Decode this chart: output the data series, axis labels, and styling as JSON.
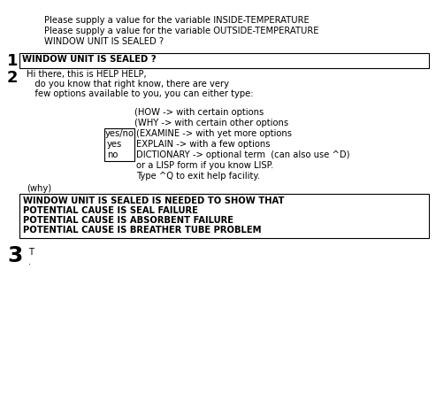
{
  "bg_color": "#ffffff",
  "fig_width": 4.93,
  "fig_height": 4.61,
  "header_lines": [
    "Please supply a value for the variable INSIDE-TEMPERATURE",
    "Please supply a value for the variable OUTSIDE-TEMPERATURE",
    "WINDOW UNIT IS SEALED ?"
  ],
  "label1": "1",
  "box1_text": "WINDOW UNIT IS SEALED ?",
  "label2": "2",
  "answer_lines": [
    "Hi there, this is HELP HELP,",
    "   do you know that right know, there are very",
    "   few options available to you, you can either type:"
  ],
  "opt_how": "(HOW -> with certain options",
  "opt_why": "(WHY -> with certain other options",
  "opt_examine": "(EXAMINE -> with yet more options",
  "opt_explain": "EXPLAIN -> with a few options",
  "opt_dict": "DICTIONARY -> optional term  (can also use ^D)",
  "opt_lisp": "or a LISP form if you know LISP.",
  "opt_exit": "Type ^Q to exit help facility.",
  "yesno_label": "yes/no",
  "yes_label": "yes",
  "no_label": "no",
  "why_label": "(why)",
  "eval_lines": [
    "WINDOW UNIT IS SEALED IS NEEDED TO SHOW THAT",
    "POTENTIAL CAUSE IS SEAL FAILURE",
    "POTENTIAL CAUSE IS ABSORBENT FAILURE",
    "POTENTIAL CAUSE IS BREATHER TUBE PROBLEM"
  ],
  "label3": "3",
  "bottom_text": "T",
  "bottom_dot": "."
}
